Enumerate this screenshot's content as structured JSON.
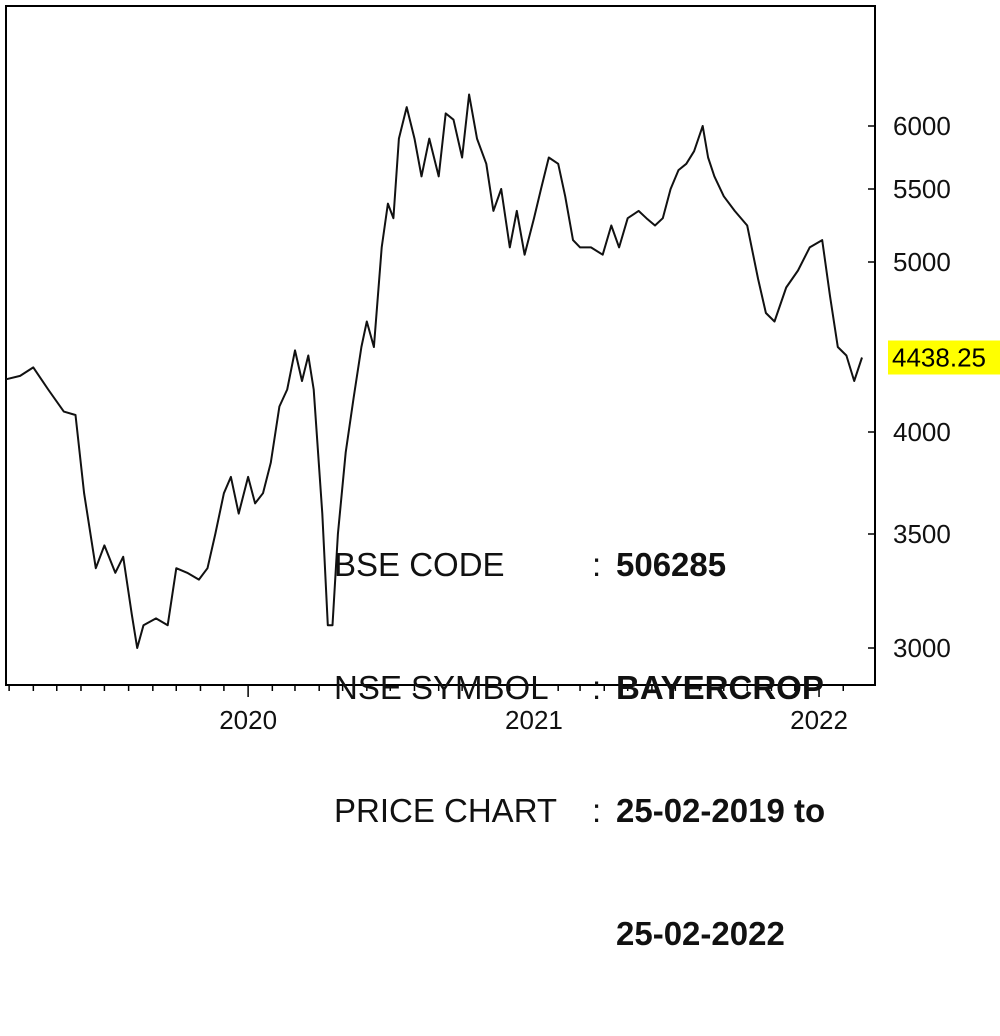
{
  "chart_data": {
    "type": "line",
    "x_range": [
      "2019-02-25",
      "2022-02-25"
    ],
    "ylim": [
      2860,
      6380
    ],
    "y_ticks": [
      3000,
      3500,
      4000,
      5000,
      5500,
      6000
    ],
    "x_tick_labels": [
      "2020",
      "2021",
      "2022"
    ],
    "last_price_label": "4438.25",
    "last_price": 4438.25,
    "grid": false,
    "legend": "none",
    "colors": {
      "line": "#111111",
      "price_tag": "#ffff00",
      "frame": "#000000"
    },
    "series": [
      {
        "values": [
          [
            "2019-02-25",
            4310
          ],
          [
            "2019-03-15",
            4330
          ],
          [
            "2019-04-01",
            4380
          ],
          [
            "2019-04-20",
            4250
          ],
          [
            "2019-05-10",
            4120
          ],
          [
            "2019-05-25",
            4100
          ],
          [
            "2019-06-05",
            3700
          ],
          [
            "2019-06-20",
            3350
          ],
          [
            "2019-07-01",
            3450
          ],
          [
            "2019-07-15",
            3330
          ],
          [
            "2019-07-25",
            3400
          ],
          [
            "2019-08-05",
            3150
          ],
          [
            "2019-08-12",
            3000
          ],
          [
            "2019-08-20",
            3100
          ],
          [
            "2019-09-05",
            3130
          ],
          [
            "2019-09-20",
            3100
          ],
          [
            "2019-10-01",
            3350
          ],
          [
            "2019-10-15",
            3330
          ],
          [
            "2019-10-30",
            3300
          ],
          [
            "2019-11-10",
            3350
          ],
          [
            "2019-11-20",
            3500
          ],
          [
            "2019-12-01",
            3700
          ],
          [
            "2019-12-10",
            3780
          ],
          [
            "2019-12-20",
            3600
          ],
          [
            "2020-01-01",
            3780
          ],
          [
            "2020-01-10",
            3650
          ],
          [
            "2020-01-20",
            3700
          ],
          [
            "2020-01-30",
            3850
          ],
          [
            "2020-02-10",
            4150
          ],
          [
            "2020-02-20",
            4250
          ],
          [
            "2020-03-01",
            4480
          ],
          [
            "2020-03-10",
            4300
          ],
          [
            "2020-03-18",
            4450
          ],
          [
            "2020-03-25",
            4250
          ],
          [
            "2020-04-05",
            3600
          ],
          [
            "2020-04-12",
            3100
          ],
          [
            "2020-04-18",
            3100
          ],
          [
            "2020-04-25",
            3500
          ],
          [
            "2020-05-05",
            3900
          ],
          [
            "2020-05-15",
            4200
          ],
          [
            "2020-05-25",
            4500
          ],
          [
            "2020-06-01",
            4650
          ],
          [
            "2020-06-10",
            4500
          ],
          [
            "2020-06-20",
            5100
          ],
          [
            "2020-06-28",
            5400
          ],
          [
            "2020-07-05",
            5300
          ],
          [
            "2020-07-12",
            5900
          ],
          [
            "2020-07-22",
            6150
          ],
          [
            "2020-08-01",
            5900
          ],
          [
            "2020-08-10",
            5600
          ],
          [
            "2020-08-20",
            5900
          ],
          [
            "2020-09-01",
            5600
          ],
          [
            "2020-09-10",
            6100
          ],
          [
            "2020-09-20",
            6050
          ],
          [
            "2020-10-01",
            5750
          ],
          [
            "2020-10-10",
            6250
          ],
          [
            "2020-10-20",
            5900
          ],
          [
            "2020-11-01",
            5700
          ],
          [
            "2020-11-10",
            5350
          ],
          [
            "2020-11-20",
            5500
          ],
          [
            "2020-12-01",
            5100
          ],
          [
            "2020-12-10",
            5350
          ],
          [
            "2020-12-20",
            5050
          ],
          [
            "2021-01-01",
            5300
          ],
          [
            "2021-01-10",
            5500
          ],
          [
            "2021-01-20",
            5750
          ],
          [
            "2021-02-01",
            5700
          ],
          [
            "2021-02-10",
            5450
          ],
          [
            "2021-02-20",
            5150
          ],
          [
            "2021-03-01",
            5100
          ],
          [
            "2021-03-15",
            5100
          ],
          [
            "2021-03-30",
            5050
          ],
          [
            "2021-04-10",
            5250
          ],
          [
            "2021-04-20",
            5100
          ],
          [
            "2021-05-01",
            5300
          ],
          [
            "2021-05-15",
            5350
          ],
          [
            "2021-05-25",
            5300
          ],
          [
            "2021-06-05",
            5250
          ],
          [
            "2021-06-15",
            5300
          ],
          [
            "2021-06-25",
            5500
          ],
          [
            "2021-07-05",
            5650
          ],
          [
            "2021-07-15",
            5700
          ],
          [
            "2021-07-25",
            5800
          ],
          [
            "2021-08-05",
            6000
          ],
          [
            "2021-08-12",
            5750
          ],
          [
            "2021-08-20",
            5600
          ],
          [
            "2021-09-01",
            5450
          ],
          [
            "2021-09-15",
            5350
          ],
          [
            "2021-10-01",
            5250
          ],
          [
            "2021-10-15",
            4900
          ],
          [
            "2021-10-25",
            4700
          ],
          [
            "2021-11-05",
            4650
          ],
          [
            "2021-11-20",
            4850
          ],
          [
            "2021-12-05",
            4950
          ],
          [
            "2021-12-20",
            5100
          ],
          [
            "2022-01-05",
            5150
          ],
          [
            "2022-01-15",
            4800
          ],
          [
            "2022-01-25",
            4500
          ],
          [
            "2022-02-05",
            4450
          ],
          [
            "2022-02-15",
            4300
          ],
          [
            "2022-02-25",
            4438.25
          ]
        ]
      }
    ]
  },
  "info": {
    "bse_label": "BSE CODE",
    "bse_value": "506285",
    "nse_label": "NSE SYMBOL",
    "nse_value": "BAYERCROP",
    "range_label": "PRICE CHART",
    "range_value": "25-02-2019 to",
    "range_value_cont": "25-02-2022",
    "colon": ":"
  }
}
